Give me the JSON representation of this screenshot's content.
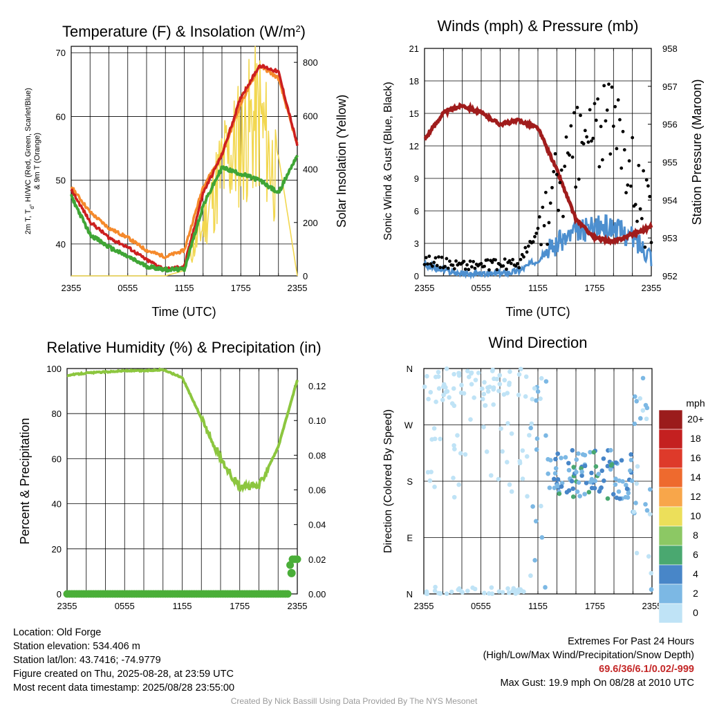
{
  "colors": {
    "temp_red": "#cc1f1f",
    "dew_green": "#3fa535",
    "t9_orange": "#f58a2c",
    "insolation_yellow": "#f2d74f",
    "rh_green": "#8cc63f",
    "precip_green": "#4aae38",
    "wind_blue": "#4d8fcf",
    "gust_black": "#000000",
    "pressure_maroon": "#a01c1c"
  },
  "chart_data": [
    {
      "type": "line",
      "title": "Temperature (F) & Insolation (W/m²)",
      "title_main": "Temperature (F) & Insolation (W/m",
      "title_sup": "2",
      "title_close": ")",
      "xlabel": "Time (UTC)",
      "ylabel_line1": "2m T, T",
      "ylabel_sub": "d",
      "ylabel_line1_rest": ", HI/WC (Red, Green, Scarlet/Blue)",
      "ylabel_line2": "& 9m T (Orange)",
      "y2label": "Solar Insolation (Yellow)",
      "x_tick_labels": [
        "2355",
        "0555",
        "1155",
        "1755",
        "2355"
      ],
      "ylim": [
        35,
        71
      ],
      "y_ticks": [
        40,
        50,
        60,
        70
      ],
      "y2lim": [
        0,
        860
      ],
      "y2_ticks": [
        0,
        200,
        400,
        600,
        800
      ],
      "x": [
        0,
        2,
        4,
        6,
        8,
        10,
        12,
        14,
        16,
        18,
        20,
        22,
        24
      ],
      "series": [
        {
          "key": "t2m",
          "values": [
            48.5,
            43.5,
            41.0,
            39.5,
            37.5,
            36.0,
            36.5,
            48,
            54,
            63,
            68,
            67,
            55.5
          ]
        },
        {
          "key": "t9m",
          "values": [
            49.0,
            45.0,
            42.5,
            41.0,
            39.0,
            38.0,
            39.0,
            49,
            54,
            62,
            68,
            66,
            55.5
          ]
        },
        {
          "key": "dewpoint",
          "values": [
            47.5,
            41.5,
            39.5,
            38.0,
            36.5,
            36.0,
            36.0,
            46,
            52,
            51,
            50,
            48,
            54
          ]
        },
        {
          "key": "insolation",
          "axis": "right",
          "values": [
            0,
            0,
            0,
            0,
            0,
            0,
            20,
            260,
            550,
            700,
            820,
            450,
            0
          ]
        }
      ]
    },
    {
      "type": "line",
      "title": "Winds (mph) & Pressure (mb)",
      "xlabel": "Time (UTC)",
      "ylabel": "Sonic Wind & Gust (Blue, Black)",
      "y2label": "Station Pressure (Maroon)",
      "x_tick_labels": [
        "2355",
        "0555",
        "1155",
        "1755",
        "2355"
      ],
      "ylim": [
        0,
        21
      ],
      "y_ticks": [
        0,
        3,
        6,
        9,
        12,
        15,
        18,
        21
      ],
      "y2lim": [
        952,
        958
      ],
      "y2_ticks": [
        952,
        953,
        954,
        955,
        956,
        957,
        958
      ],
      "x": [
        0,
        2,
        4,
        6,
        8,
        10,
        12,
        14,
        16,
        18,
        20,
        22,
        24
      ],
      "series": [
        {
          "key": "wind",
          "values": [
            1.0,
            0.5,
            0.2,
            0.1,
            0.2,
            0.5,
            1.5,
            3.0,
            4.0,
            4.5,
            4.5,
            3.5,
            2.0
          ]
        },
        {
          "key": "gust",
          "values": [
            1.5,
            1.2,
            1.0,
            1.0,
            1.0,
            1.2,
            4.0,
            8.0,
            11.5,
            13.5,
            14.0,
            10.5,
            4.0
          ]
        },
        {
          "key": "pressure",
          "axis": "right",
          "values": [
            955.6,
            956.3,
            956.5,
            956.3,
            956.0,
            956.1,
            955.9,
            954.8,
            953.5,
            953.0,
            952.9,
            953.1,
            953.3
          ]
        }
      ]
    },
    {
      "type": "line",
      "title": "Relative Humidity (%) & Precipitation (in)",
      "xlabel": "",
      "ylabel": "Percent & Precipitation",
      "x_tick_labels": [
        "2355",
        "0555",
        "1155",
        "1755",
        "2355"
      ],
      "ylim": [
        0,
        100
      ],
      "y_ticks": [
        0,
        20,
        40,
        60,
        80,
        100
      ],
      "y2lim": [
        0,
        0.13
      ],
      "y2_ticks": [
        "0.00",
        "0.02",
        "0.04",
        "0.06",
        "0.08",
        "0.10",
        "0.12"
      ],
      "x": [
        0,
        2,
        4,
        6,
        8,
        10,
        12,
        14,
        16,
        18,
        20,
        22,
        24
      ],
      "series": [
        {
          "key": "rh",
          "values": [
            97,
            98,
            98.5,
            99,
            99,
            99.5,
            96,
            78,
            60,
            47,
            48,
            65,
            95
          ]
        },
        {
          "key": "precip",
          "axis": "right",
          "x": [
            0,
            23,
            23.3,
            24
          ],
          "values": [
            0,
            0,
            0.02,
            0.02
          ]
        }
      ]
    },
    {
      "type": "scatter",
      "title": "Wind Direction",
      "xlabel": "",
      "ylabel": "Direction (Colored By Speed)",
      "x_tick_labels": [
        "2355",
        "0555",
        "1155",
        "1755",
        "2355"
      ],
      "y_tick_labels": [
        "N",
        "E",
        "S",
        "W",
        "N"
      ],
      "ylim": [
        0,
        360
      ],
      "colorbar_title": "mph",
      "colorbar_labels": [
        "20+",
        "18",
        "16",
        "14",
        "12",
        "10",
        "8",
        "6",
        "4",
        "2",
        "0"
      ],
      "colorbar_colors": [
        "#9b1c1c",
        "#c42020",
        "#de3a2a",
        "#ee6a2e",
        "#f8a64a",
        "#ecdf5a",
        "#8cc864",
        "#4aa870",
        "#4886c8",
        "#7cb8e4",
        "#bfe3f6"
      ]
    }
  ],
  "info": {
    "location": "Location: Old Forge",
    "elevation": "Station elevation: 534.406 m",
    "latlon": "Station lat/lon: 43.7416; -74.9779",
    "created": "Figure created on Thu, 2025-08-28, at 23:59 UTC",
    "recent": "Most recent data timestamp: 2025/08/28 23:55:00"
  },
  "extremes": {
    "heading": "Extremes For Past 24 Hours",
    "legend": "(High/Low/Max Wind/Precipitation/Snow Depth)",
    "values": "69.6/36/6.1/0.02/-999",
    "max_gust": "Max Gust: 19.9 mph On 08/28 at 2010 UTC"
  },
  "credit": "Created By Nick Bassill Using Data Provided By The NYS Mesonet"
}
